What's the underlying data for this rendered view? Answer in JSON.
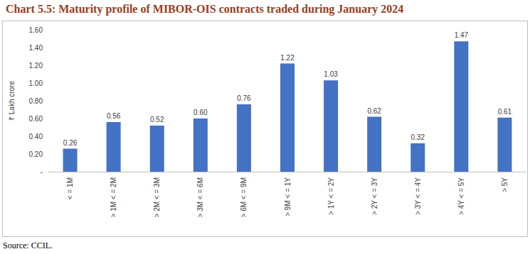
{
  "chart_data": {
    "type": "bar",
    "title": "Chart 5.5: Maturity profile of MIBOR-OIS contracts traded during January 2024",
    "y_label": "₹ Lakh crore",
    "source": "Source: CCIL.",
    "categories": [
      "< = 1M",
      "> 1M < = 2M",
      "> 2M < = 3M",
      "> 3M < = 6M",
      "> 6M < = 9M",
      "> 9M < = 1Y",
      "> 1Y < = 2Y",
      "> 2Y < = 3Y",
      "> 3Y < = 4Y",
      "> 4Y < = 5Y",
      "> 5Y"
    ],
    "values": [
      0.26,
      0.56,
      0.52,
      0.6,
      0.76,
      1.22,
      1.03,
      0.62,
      0.32,
      1.47,
      0.61
    ],
    "value_labels": [
      "0.26",
      "0.56",
      "0.52",
      "0.60",
      "0.76",
      "1.22",
      "1.03",
      "0.62",
      "0.32",
      "1.47",
      "0.61"
    ],
    "color": "#4472c4",
    "ylim": [
      0,
      1.6
    ],
    "yticks": [
      {
        "value": 0,
        "label": "-"
      },
      {
        "value": 0.2,
        "label": "0.20"
      },
      {
        "value": 0.4,
        "label": "0.40"
      },
      {
        "value": 0.6,
        "label": "0.60"
      },
      {
        "value": 0.8,
        "label": "0.80"
      },
      {
        "value": 1.0,
        "label": "1.00"
      },
      {
        "value": 1.2,
        "label": "1.20"
      },
      {
        "value": 1.4,
        "label": "1.40"
      },
      {
        "value": 1.6,
        "label": "1.60"
      }
    ],
    "grid": false,
    "data_labels": true
  }
}
